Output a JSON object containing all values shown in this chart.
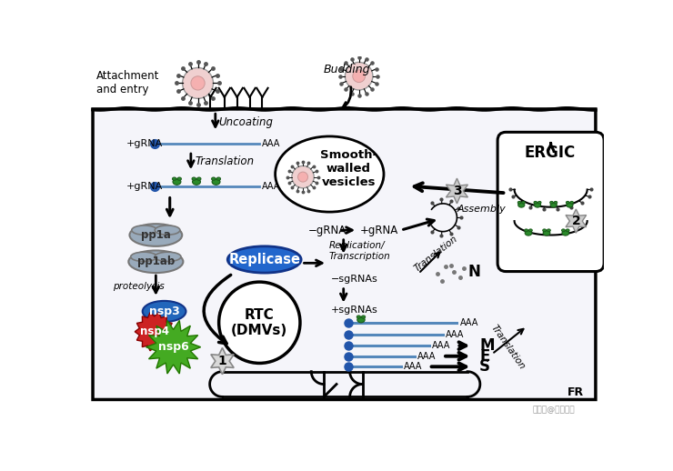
{
  "bg_color": "#ffffff",
  "labels": {
    "attachment": "Attachment\nand entry",
    "uncoating": "Uncoating",
    "translation1": "Translation",
    "plus_grna1": "+gRNA",
    "plus_grna2": "+gRNA",
    "minus_grna": "−gRNA",
    "plus_grna3": "+gRNA",
    "pp1a": "pp1a",
    "pp1ab": "pp1ab",
    "proteolysis": "proteolysis",
    "nsp3": "nsp3",
    "nsp4": "nsp4",
    "nsp6": "nsp6",
    "replicase": "Replicase",
    "rtc": "RTC\n(DMVs)",
    "rep_trans": "Replication/\nTranscription",
    "minus_sgrnas": "−sgRNAs",
    "plus_sgrnas": "+sgRNAs",
    "m": "M",
    "e": "E",
    "s": "S",
    "translation2": "Translation",
    "translation3": "Translation",
    "n": "N",
    "assembly": "Assembly",
    "ergic": "ERGIC",
    "budding": "Budding",
    "smooth_walled": "Smooth-\nwalled\nvesicles",
    "fr": "FR",
    "num1": "1",
    "num2": "2",
    "num3": "3"
  }
}
